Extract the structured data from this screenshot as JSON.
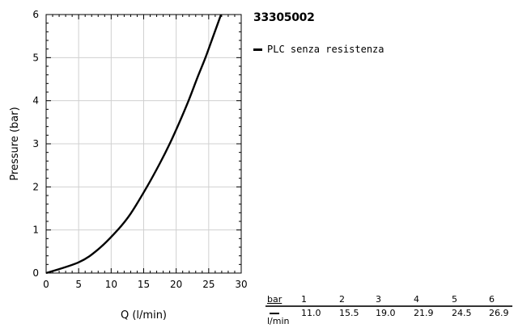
{
  "chart_data": {
    "type": "line",
    "title": "33305002",
    "xlabel": "Q (l/min)",
    "ylabel": "Pressure (bar)",
    "xlim": [
      0,
      30
    ],
    "ylim": [
      0,
      6
    ],
    "xticks": [
      0,
      5,
      10,
      15,
      20,
      25,
      30
    ],
    "yticks": [
      0,
      1,
      2,
      3,
      4,
      5,
      6
    ],
    "grid": true,
    "legend_position": "right of plot, top",
    "series": [
      {
        "name": "PLC senza resistenza",
        "color": "#000000",
        "x": [
          0,
          5,
          8,
          11.0,
          13,
          15.5,
          17.5,
          19.0,
          20.5,
          21.9,
          23.3,
          24.5,
          25.7,
          26.9
        ],
        "y": [
          0,
          0.25,
          0.55,
          1,
          1.38,
          2,
          2.55,
          3,
          3.5,
          4,
          4.55,
          5,
          5.5,
          6
        ]
      }
    ]
  },
  "table": {
    "header_unit": "bar",
    "value_unit": "l/min",
    "bar_values": [
      "1",
      "2",
      "3",
      "4",
      "5",
      "6"
    ],
    "flow_values": [
      "11.0",
      "15.5",
      "19.0",
      "21.9",
      "24.5",
      "26.9"
    ]
  }
}
